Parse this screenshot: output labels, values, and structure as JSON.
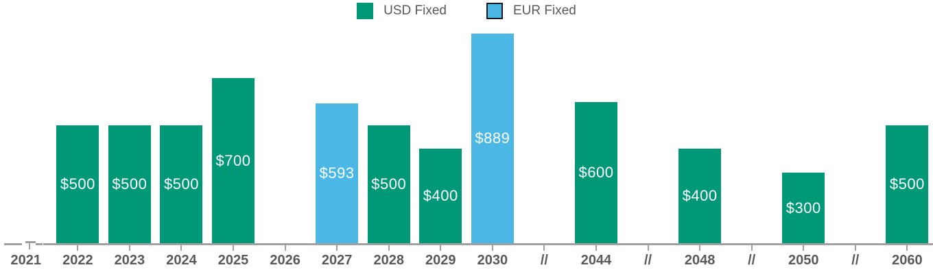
{
  "legend": {
    "items": [
      {
        "label": "USD Fixed",
        "color": "#009877",
        "bordered": false
      },
      {
        "label": "EUR Fixed",
        "color": "#4AB7E5",
        "bordered": true
      }
    ]
  },
  "chart_data": {
    "type": "bar",
    "title": "",
    "categories": [
      "2021",
      "2022",
      "2023",
      "2024",
      "2025",
      "2026",
      "2027",
      "2028",
      "2029",
      "2030",
      "//",
      "2044",
      "//",
      "2048",
      "//",
      "2050",
      "//",
      "2060"
    ],
    "series": [
      {
        "name": "USD Fixed",
        "color": "#009877",
        "values": [
          null,
          500,
          500,
          500,
          700,
          null,
          null,
          500,
          400,
          null,
          null,
          600,
          null,
          400,
          null,
          300,
          null,
          500
        ]
      },
      {
        "name": "EUR Fixed",
        "color": "#4AB7E5",
        "values": [
          null,
          null,
          null,
          null,
          null,
          null,
          593,
          null,
          null,
          889,
          null,
          null,
          null,
          null,
          null,
          null,
          null,
          null
        ]
      }
    ],
    "value_prefix": "$",
    "bar_value_labels": [
      "$500",
      "$500",
      "$500",
      "$700",
      "$593",
      "$500",
      "$400",
      "$889",
      "$600",
      "$400",
      "$300",
      "$500"
    ],
    "ylim": [
      0,
      1030
    ],
    "grid": false,
    "legend_position": "top-center",
    "value_label_color": "#ffffff",
    "axis_line_color": "#a0a0a0",
    "tick_label_color": "#595959",
    "left_axis_break_marker": true
  }
}
